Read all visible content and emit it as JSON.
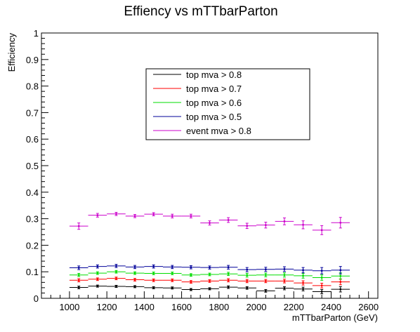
{
  "chart_data": {
    "type": "scatter",
    "title": "Effiency vs  mTTbarParton",
    "xlabel": "mTTbarParton (GeV)",
    "ylabel": "Efficiency",
    "xlim": [
      850,
      2650
    ],
    "ylim": [
      0,
      1
    ],
    "x_ticks": [
      1000,
      1200,
      1400,
      1600,
      1800,
      2000,
      2200,
      2400,
      2600
    ],
    "y_ticks": [
      0,
      0.1,
      0.2,
      0.3,
      0.4,
      0.5,
      0.6,
      0.7,
      0.8,
      0.9,
      1
    ],
    "x_tick_labels": [
      "1000",
      "1200",
      "1400",
      "1600",
      "1800",
      "2000",
      "2200",
      "2400",
      "2600"
    ],
    "y_tick_labels": [
      "0",
      "0.1",
      "0.2",
      "0.3",
      "0.4",
      "0.5",
      "0.6",
      "0.7",
      "0.8",
      "0.9",
      "1"
    ],
    "legend_position": "upper-center",
    "grid": false,
    "series": [
      {
        "name": "top mva > 0.8",
        "color": "#000000",
        "x": [
          1050,
          1150,
          1250,
          1350,
          1450,
          1550,
          1650,
          1750,
          1850,
          1950,
          2050,
          2150,
          2250,
          2350,
          2450
        ],
        "xerr": [
          50,
          50,
          50,
          50,
          50,
          50,
          50,
          50,
          50,
          50,
          50,
          50,
          50,
          50,
          50
        ],
        "y": [
          0.041,
          0.046,
          0.045,
          0.044,
          0.04,
          0.039,
          0.033,
          0.036,
          0.042,
          0.039,
          0.028,
          0.038,
          0.035,
          0.025,
          0.034
        ],
        "yerr": [
          0.005,
          0.004,
          0.004,
          0.004,
          0.004,
          0.004,
          0.004,
          0.004,
          0.005,
          0.005,
          0.005,
          0.006,
          0.007,
          0.008,
          0.01
        ]
      },
      {
        "name": "top mva > 0.7",
        "color": "#ff0000",
        "x": [
          1050,
          1150,
          1250,
          1350,
          1450,
          1550,
          1650,
          1750,
          1850,
          1950,
          2050,
          2150,
          2250,
          2350,
          2450
        ],
        "xerr": [
          50,
          50,
          50,
          50,
          50,
          50,
          50,
          50,
          50,
          50,
          50,
          50,
          50,
          50,
          50
        ],
        "y": [
          0.068,
          0.072,
          0.075,
          0.07,
          0.068,
          0.068,
          0.062,
          0.065,
          0.068,
          0.065,
          0.065,
          0.065,
          0.058,
          0.048,
          0.062
        ],
        "yerr": [
          0.006,
          0.005,
          0.005,
          0.005,
          0.005,
          0.005,
          0.005,
          0.005,
          0.006,
          0.006,
          0.006,
          0.007,
          0.008,
          0.009,
          0.011
        ]
      },
      {
        "name": "top mva > 0.6",
        "color": "#00dd00",
        "x": [
          1050,
          1150,
          1250,
          1350,
          1450,
          1550,
          1650,
          1750,
          1850,
          1950,
          2050,
          2150,
          2250,
          2350,
          2450
        ],
        "xerr": [
          50,
          50,
          50,
          50,
          50,
          50,
          50,
          50,
          50,
          50,
          50,
          50,
          50,
          50,
          50
        ],
        "y": [
          0.088,
          0.095,
          0.1,
          0.095,
          0.094,
          0.094,
          0.088,
          0.09,
          0.092,
          0.087,
          0.088,
          0.088,
          0.085,
          0.078,
          0.084
        ],
        "yerr": [
          0.006,
          0.005,
          0.005,
          0.005,
          0.005,
          0.005,
          0.005,
          0.005,
          0.006,
          0.007,
          0.007,
          0.008,
          0.009,
          0.01,
          0.012
        ]
      },
      {
        "name": "top mva > 0.5",
        "color": "#000099",
        "x": [
          1050,
          1150,
          1250,
          1350,
          1450,
          1550,
          1650,
          1750,
          1850,
          1950,
          2050,
          2150,
          2250,
          2350,
          2450
        ],
        "xerr": [
          50,
          50,
          50,
          50,
          50,
          50,
          50,
          50,
          50,
          50,
          50,
          50,
          50,
          50,
          50
        ],
        "y": [
          0.115,
          0.12,
          0.122,
          0.118,
          0.12,
          0.118,
          0.117,
          0.116,
          0.117,
          0.108,
          0.109,
          0.11,
          0.106,
          0.104,
          0.106
        ],
        "yerr": [
          0.007,
          0.006,
          0.006,
          0.006,
          0.006,
          0.006,
          0.006,
          0.006,
          0.007,
          0.008,
          0.008,
          0.009,
          0.01,
          0.012,
          0.014
        ]
      },
      {
        "name": "event mva > 0.8",
        "color": "#cc00cc",
        "x": [
          1050,
          1150,
          1250,
          1350,
          1450,
          1550,
          1650,
          1750,
          1850,
          1950,
          2050,
          2150,
          2250,
          2350,
          2450
        ],
        "xerr": [
          50,
          50,
          50,
          50,
          50,
          50,
          50,
          50,
          50,
          50,
          50,
          50,
          50,
          50,
          50
        ],
        "y": [
          0.272,
          0.313,
          0.318,
          0.31,
          0.317,
          0.31,
          0.31,
          0.284,
          0.295,
          0.273,
          0.276,
          0.29,
          0.277,
          0.257,
          0.285
        ],
        "yerr": [
          0.012,
          0.007,
          0.006,
          0.006,
          0.006,
          0.007,
          0.007,
          0.008,
          0.009,
          0.01,
          0.011,
          0.013,
          0.015,
          0.017,
          0.02
        ]
      }
    ]
  }
}
